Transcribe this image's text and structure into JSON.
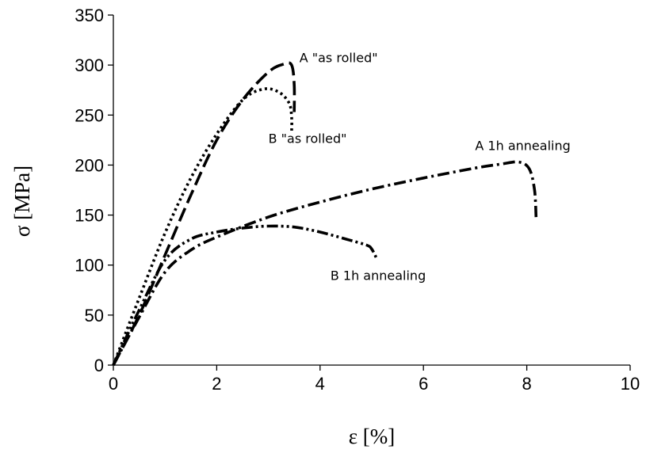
{
  "chart_data": {
    "type": "line",
    "title": "",
    "xlabel": "ε [%]",
    "ylabel": "σ [MPa]",
    "xlim": [
      0,
      10
    ],
    "ylim": [
      0,
      350
    ],
    "xticks": [
      0,
      2,
      4,
      6,
      8,
      10
    ],
    "yticks": [
      0,
      50,
      100,
      150,
      200,
      250,
      300,
      350
    ],
    "xtick_labels": [
      "0",
      "2",
      "4",
      "6",
      "8",
      "10"
    ],
    "ytick_labels": [
      "0",
      "50",
      "100",
      "150",
      "200",
      "250",
      "300",
      "350"
    ],
    "grid": false,
    "legend": "none (series labelled directly on the plot)",
    "series": [
      {
        "name": "A \"as rolled\"",
        "line_style": "long-dash",
        "x": [
          0,
          0.5,
          1.0,
          1.5,
          2.0,
          2.5,
          3.0,
          3.3,
          3.45,
          3.5,
          3.5
        ],
        "y": [
          0,
          50,
          110,
          170,
          225,
          265,
          293,
          301,
          300,
          280,
          253
        ]
      },
      {
        "name": "B \"as rolled\"",
        "line_style": "dotted",
        "x": [
          0,
          0.5,
          1.0,
          1.5,
          2.0,
          2.5,
          2.9,
          3.2,
          3.4,
          3.45,
          3.45
        ],
        "y": [
          0,
          67,
          132,
          187,
          231,
          265,
          276,
          273,
          262,
          248,
          233
        ]
      },
      {
        "name": "A 1h annealing",
        "line_style": "dash-dot",
        "x": [
          0,
          0.5,
          1.0,
          1.5,
          2.0,
          3.0,
          4.0,
          5.0,
          6.0,
          7.0,
          7.5,
          7.85,
          8.05,
          8.15,
          8.18
        ],
        "y": [
          0,
          48,
          93,
          115,
          128,
          148,
          163,
          176,
          187,
          197,
          201,
          203,
          196,
          175,
          148
        ]
      },
      {
        "name": "B 1h annealing",
        "line_style": "dash-dot-dot",
        "x": [
          0,
          0.5,
          1.0,
          1.5,
          2.0,
          2.5,
          3.0,
          3.5,
          4.0,
          4.5,
          4.9,
          5.0,
          5.1
        ],
        "y": [
          0,
          55,
          105,
          126,
          133,
          137,
          139,
          138,
          133,
          126,
          120,
          116,
          106
        ]
      }
    ],
    "annotations": [
      {
        "text": "A \"as rolled\"",
        "x": 3.6,
        "y": 303
      },
      {
        "text": "B \"as rolled\"",
        "x": 3.0,
        "y": 222
      },
      {
        "text": "A 1h annealing",
        "x": 7.0,
        "y": 215
      },
      {
        "text": "B 1h annealing",
        "x": 4.2,
        "y": 85
      }
    ]
  }
}
